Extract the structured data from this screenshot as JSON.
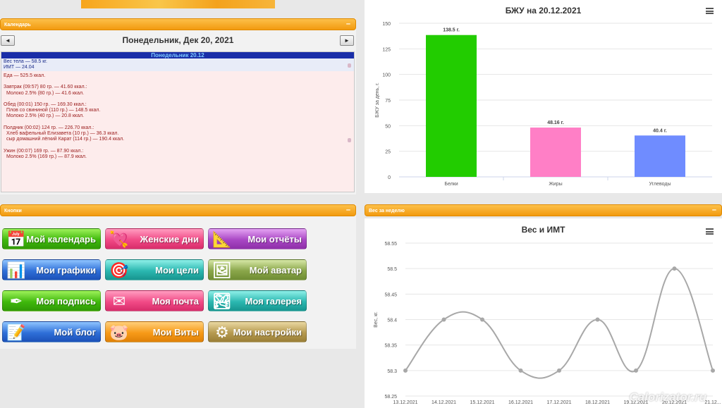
{
  "banner": {
    "text": ""
  },
  "calendar": {
    "panel_title": "Календарь",
    "minimize": "–",
    "prev": "◄",
    "next": "►",
    "date_title": "Понедельник, Дек 20, 2021",
    "day_header": "Понедельник 20.12",
    "weight": "Вес тела — 58.5 кг.",
    "bmi": "ИМТ — 24.04",
    "food_total": "Еда — 525.5 ккал.",
    "breakfast": "Завтрак (09:57) 80 гр. — 41.60 ккал.:",
    "breakfast_1": "Молоко 2.5% (80 гр.) — 41.6 ккал.",
    "lunch": "Обед (00:01) 150 гр. — 169.30 ккал.:",
    "lunch_1": "Плов со свининой (110 гр.) — 148.5 ккал.",
    "lunch_2": "Молоко 2.5% (40 гр.) — 20.8 ккал.",
    "snack": "Полдник (00:02) 124 гр. — 226.70 ккал.:",
    "snack_1": "Хлеб вафельный Елизавета (10 гр.) — 36.3 ккал.",
    "snack_2": "сыр домашний лёгкий Карат (114 гр.) — 190.4 ккал.",
    "dinner": "Ужин (00:07) 169 гр. — 87.90 ккал.:",
    "dinner_1": "Молоко 2.5% (169 гр.) — 87.9 ккал."
  },
  "buttons": {
    "panel_title": "Кнопки",
    "minimize": "–",
    "items": [
      {
        "label": "Мой календарь",
        "icon": "calendar-icon"
      },
      {
        "label": "Женские дни",
        "icon": "heart-icon"
      },
      {
        "label": "Мои отчёты",
        "icon": "compass-icon"
      },
      {
        "label": "Мои графики",
        "icon": "chart-icon"
      },
      {
        "label": "Мои цели",
        "icon": "target-icon"
      },
      {
        "label": "Мой аватар",
        "icon": "portrait-icon"
      },
      {
        "label": "Моя подпись",
        "icon": "pen-icon"
      },
      {
        "label": "Моя почта",
        "icon": "mail-icon"
      },
      {
        "label": "Моя галерея",
        "icon": "gallery-icon"
      },
      {
        "label": "Мой блог",
        "icon": "blog-icon"
      },
      {
        "label": "Мои Виты",
        "icon": "piggy-bank-icon"
      },
      {
        "label": "Мои настройки",
        "icon": "gears-icon"
      }
    ]
  },
  "weight_panel": {
    "panel_title": "Вес за неделю",
    "minimize": "–"
  },
  "watermark": "Calorizator.ru",
  "chart_data": [
    {
      "type": "bar",
      "title": "БЖУ на 20.12.2021",
      "ylabel": "БЖУ за день, г.",
      "categories": [
        "Белки",
        "Жиры",
        "Углеводы"
      ],
      "values": [
        138.5,
        48.16,
        40.4
      ],
      "data_labels": [
        "138.5 г.",
        "48.16 г.",
        "40.4 г."
      ],
      "colors": [
        "#22cc00",
        "#ff7fc6",
        "#6f8cff"
      ],
      "ylim": [
        0,
        150
      ],
      "yticks": [
        0,
        25,
        50,
        75,
        100,
        125,
        150
      ],
      "grid": true
    },
    {
      "type": "line",
      "title": "Вес и ИМТ",
      "ylabel": "Вес, кг.",
      "x": [
        "13.12.2021",
        "14.12.2021",
        "15.12.2021",
        "16.12.2021",
        "17.12.2021",
        "18.12.2021",
        "19.12.2021",
        "20.12.2021",
        "21.12..."
      ],
      "values": [
        58.3,
        58.4,
        58.4,
        58.3,
        58.3,
        58.4,
        58.3,
        58.5,
        58.3
      ],
      "ylim": [
        58.25,
        58.55
      ],
      "yticks": [
        "58.25",
        "58.3",
        "58.35",
        "58.4",
        "58.45",
        "58.5",
        "58.55"
      ],
      "color": "#a8a8a8",
      "grid": true
    }
  ]
}
